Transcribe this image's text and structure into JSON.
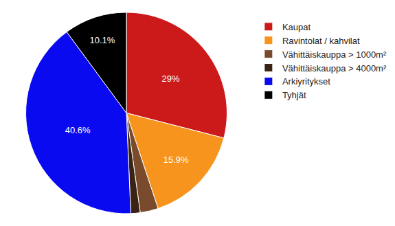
{
  "chart_data": {
    "type": "pie",
    "categories": [
      "Kaupat",
      "Ravintolat / kahvilat",
      "Vähittäiskauppa > 1000m²",
      "Vähittäiskauppa > 4000m²",
      "Arkiyritykset",
      "Tyhjät"
    ],
    "values": [
      29,
      15.9,
      2.9,
      1.5,
      40.6,
      10.1
    ],
    "value_labels": [
      "29%",
      "15.9%",
      null,
      null,
      "40.6%",
      "10.1%"
    ],
    "colors": [
      "#cc1a1a",
      "#f7941d",
      "#7a4a2c",
      "#3b2314",
      "#0a0af0",
      "#000000"
    ],
    "data_labels": true,
    "legend": "right"
  }
}
